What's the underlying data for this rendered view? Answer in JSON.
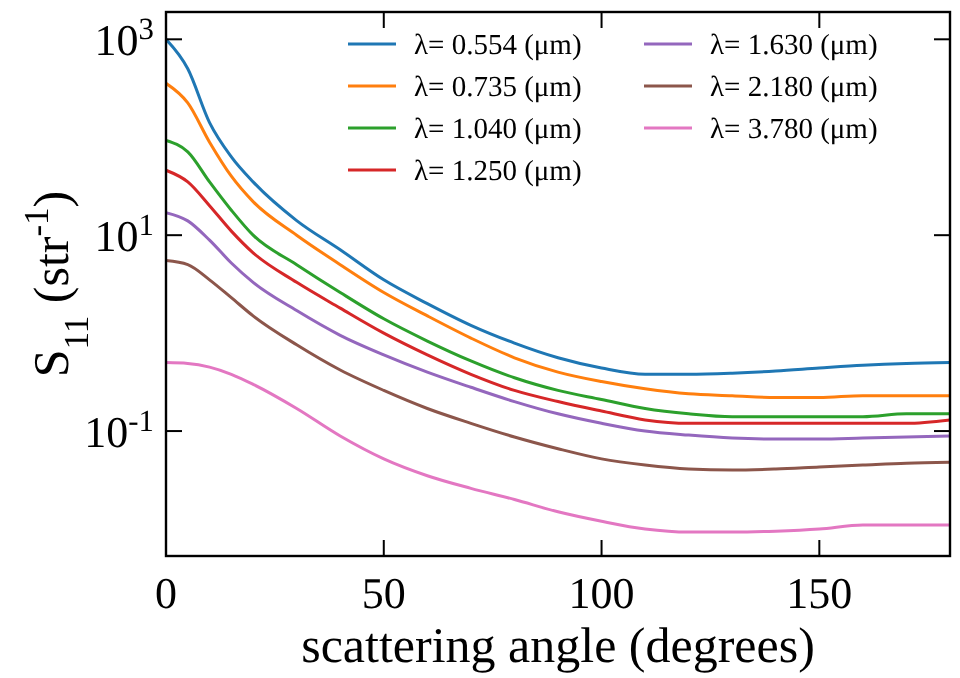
{
  "chart_data": {
    "type": "line",
    "xlabel": "scattering angle (degrees)",
    "ylabel": "S$_{11}$ (str$^{-1}$)",
    "x": [
      0,
      5,
      10,
      15,
      20,
      30,
      40,
      50,
      60,
      70,
      80,
      90,
      100,
      110,
      120,
      130,
      140,
      150,
      160,
      170,
      180
    ],
    "xlim": [
      0,
      180
    ],
    "xticks": [
      0,
      50,
      100,
      150
    ],
    "ylim": [
      0.0053,
      1900
    ],
    "log": true,
    "yticks": [
      {
        "value": 0.1,
        "label": "10$^{-1}$"
      },
      {
        "value": 10,
        "label": "10$^{1}$"
      },
      {
        "value": 1000,
        "label": "10$^{3}$"
      }
    ],
    "legend": "top right",
    "grid": false,
    "series": [
      {
        "name": "λ= 0.554 (μm)",
        "color": "#1f77b4",
        "values": [
          1000,
          500,
          141,
          63,
          35,
          14.1,
          7.1,
          3.5,
          2.0,
          1.2,
          0.79,
          0.56,
          0.44,
          0.38,
          0.38,
          0.39,
          0.41,
          0.44,
          0.47,
          0.49,
          0.5
        ]
      },
      {
        "name": "λ= 0.735 (μm)",
        "color": "#ff7f0e",
        "values": [
          355,
          224,
          89,
          40,
          22,
          10,
          5.0,
          2.6,
          1.5,
          0.89,
          0.56,
          0.4,
          0.32,
          0.27,
          0.24,
          0.23,
          0.22,
          0.22,
          0.23,
          0.23,
          0.23
        ]
      },
      {
        "name": "λ= 1.040 (μm)",
        "color": "#2ca02c",
        "values": [
          93,
          71,
          35,
          18,
          10,
          5.0,
          2.6,
          1.4,
          0.83,
          0.52,
          0.35,
          0.26,
          0.21,
          0.17,
          0.15,
          0.14,
          0.14,
          0.14,
          0.14,
          0.15,
          0.15
        ]
      },
      {
        "name": "λ= 1.250 (μm)",
        "color": "#d62728",
        "values": [
          46,
          35,
          20,
          11,
          6.6,
          3.3,
          1.8,
          1.0,
          0.6,
          0.38,
          0.26,
          0.2,
          0.16,
          0.13,
          0.12,
          0.12,
          0.12,
          0.12,
          0.12,
          0.12,
          0.13
        ]
      },
      {
        "name": "λ= 1.630 (μm)",
        "color": "#9467bd",
        "values": [
          17,
          14,
          8.9,
          5.2,
          3.3,
          1.7,
          0.95,
          0.6,
          0.4,
          0.28,
          0.2,
          0.15,
          0.12,
          0.1,
          0.091,
          0.085,
          0.083,
          0.083,
          0.085,
          0.087,
          0.089
        ]
      },
      {
        "name": "λ= 2.180 (μm)",
        "color": "#8c564b",
        "values": [
          5.5,
          5.0,
          3.5,
          2.3,
          1.5,
          0.76,
          0.42,
          0.26,
          0.17,
          0.12,
          0.087,
          0.066,
          0.052,
          0.045,
          0.041,
          0.04,
          0.041,
          0.043,
          0.045,
          0.047,
          0.048
        ]
      },
      {
        "name": "λ= 3.780 (μm)",
        "color": "#e377c2",
        "values": [
          0.5,
          0.49,
          0.45,
          0.38,
          0.3,
          0.17,
          0.089,
          0.052,
          0.035,
          0.026,
          0.02,
          0.015,
          0.012,
          0.01,
          0.0093,
          0.0093,
          0.0095,
          0.01,
          0.011,
          0.011,
          0.011
        ]
      }
    ]
  }
}
